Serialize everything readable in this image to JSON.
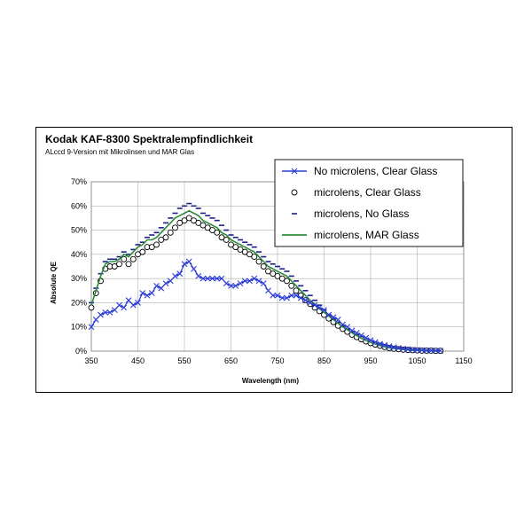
{
  "chart_data": {
    "type": "line",
    "title": "Kodak KAF-8300 Spektralempfindlichkeit",
    "subtitle": "ALccd 9-Version mit Mikrolinsen und MAR Glas",
    "xlabel": "Wavelength (nm)",
    "ylabel": "Absolute QE",
    "xlim": [
      350,
      1150
    ],
    "ylim": [
      0,
      70
    ],
    "xticks": [
      350,
      450,
      550,
      650,
      750,
      850,
      950,
      1050,
      1150
    ],
    "yticks": [
      0,
      10,
      20,
      30,
      40,
      50,
      60,
      70
    ],
    "ytick_labels": [
      "0%",
      "10%",
      "20%",
      "30%",
      "40%",
      "50%",
      "60%",
      "70%"
    ],
    "grid": true,
    "legend": "top-right",
    "series": [
      {
        "name": "No microlens, Clear Glass",
        "color": "#2a3bd6",
        "style": "line-x",
        "x": [
          350,
          360,
          370,
          380,
          390,
          400,
          410,
          420,
          430,
          440,
          450,
          460,
          470,
          480,
          490,
          500,
          510,
          520,
          530,
          540,
          550,
          560,
          570,
          580,
          590,
          600,
          610,
          620,
          630,
          640,
          650,
          660,
          670,
          680,
          690,
          700,
          710,
          720,
          730,
          740,
          750,
          760,
          770,
          780,
          790,
          800,
          810,
          820,
          830,
          840,
          850,
          860,
          870,
          880,
          890,
          900,
          910,
          920,
          930,
          940,
          950,
          960,
          970,
          980,
          990,
          1000,
          1010,
          1020,
          1030,
          1040,
          1050,
          1060,
          1070,
          1080,
          1090,
          1100
        ],
        "y": [
          10,
          13,
          15,
          16,
          16,
          17,
          19,
          18,
          21,
          19,
          20,
          24,
          23,
          24,
          27,
          26,
          28,
          29,
          31,
          32,
          36,
          37,
          34,
          31,
          30,
          30,
          30,
          30,
          30,
          28,
          27,
          27,
          28,
          29,
          29,
          30,
          29,
          28,
          25,
          23,
          23,
          22,
          22,
          23,
          23,
          22,
          21,
          20,
          19,
          18,
          17,
          15,
          14,
          13,
          11,
          10,
          8.5,
          7.5,
          6.5,
          5.5,
          4.5,
          3.7,
          3,
          2.5,
          2,
          1.6,
          1.3,
          1,
          0.8,
          0.6,
          0.5,
          0.4,
          0.3,
          0.3,
          0.2,
          0.2
        ]
      },
      {
        "name": "microlens, Clear Glass",
        "color": "#000000",
        "style": "circle",
        "x": [
          350,
          360,
          370,
          380,
          390,
          400,
          410,
          420,
          430,
          440,
          450,
          460,
          470,
          480,
          490,
          500,
          510,
          520,
          530,
          540,
          550,
          560,
          570,
          580,
          590,
          600,
          610,
          620,
          630,
          640,
          650,
          660,
          670,
          680,
          690,
          700,
          710,
          720,
          730,
          740,
          750,
          760,
          770,
          780,
          790,
          800,
          810,
          820,
          830,
          840,
          850,
          860,
          870,
          880,
          890,
          900,
          910,
          920,
          930,
          940,
          950,
          960,
          970,
          980,
          990,
          1000,
          1010,
          1020,
          1030,
          1040,
          1050,
          1060,
          1070,
          1080,
          1090,
          1100
        ],
        "y": [
          18,
          24,
          29,
          34,
          35,
          35,
          36,
          38,
          36,
          38,
          40,
          41,
          43,
          43,
          44,
          46,
          47,
          49,
          51,
          53,
          54,
          55,
          54,
          53,
          52,
          51,
          50,
          49,
          47,
          46,
          44,
          43,
          42,
          41,
          40,
          39,
          37,
          35,
          33,
          32,
          31,
          30,
          29,
          27,
          25,
          23,
          21,
          19.5,
          18,
          16.5,
          15,
          13.5,
          12,
          10.5,
          9.2,
          8,
          6.8,
          5.8,
          4.9,
          4,
          3.3,
          2.7,
          2.2,
          1.7,
          1.3,
          1,
          0.8,
          0.6,
          0.5,
          0.4,
          0.3,
          0.2,
          0.2,
          0.2,
          0.1,
          0.1
        ]
      },
      {
        "name": "microlens, No Glass",
        "color": "#1a1f8a",
        "style": "dash",
        "x": [
          350,
          360,
          370,
          380,
          390,
          400,
          410,
          420,
          430,
          440,
          450,
          460,
          470,
          480,
          490,
          500,
          510,
          520,
          530,
          540,
          550,
          560,
          570,
          580,
          590,
          600,
          610,
          620,
          630,
          640,
          650,
          660,
          670,
          680,
          690,
          700,
          710,
          720,
          730,
          740,
          750,
          760,
          770,
          780,
          790,
          800,
          810,
          820,
          830,
          840,
          850,
          860,
          870,
          880,
          890,
          900,
          910,
          920,
          930,
          940,
          950,
          960,
          970,
          980,
          990,
          1000,
          1010,
          1020,
          1030,
          1040,
          1050,
          1060,
          1070,
          1080,
          1090,
          1100
        ],
        "y": [
          20,
          26,
          32,
          37,
          38,
          38,
          39,
          41,
          40,
          42,
          44,
          45,
          47,
          48,
          49,
          51,
          53,
          55,
          57,
          59,
          60,
          61,
          60,
          59,
          57,
          56,
          55,
          54,
          52,
          50,
          48,
          47,
          46,
          45,
          44,
          43,
          41,
          39,
          37,
          36,
          35,
          34,
          33,
          31,
          29,
          27,
          25,
          23,
          21,
          19,
          17,
          15,
          13.5,
          12,
          10.5,
          9,
          7.8,
          6.6,
          5.5,
          4.6,
          3.8,
          3.1,
          2.5,
          2,
          1.6,
          1.2,
          1,
          0.8,
          0.6,
          0.5,
          0.4,
          0.3,
          0.3,
          0.2,
          0.2,
          0.1
        ]
      },
      {
        "name": "microlens, MAR Glass",
        "color": "#2e8b3a",
        "style": "line",
        "x": [
          350,
          360,
          370,
          380,
          390,
          400,
          410,
          420,
          430,
          440,
          450,
          460,
          470,
          480,
          490,
          500,
          510,
          520,
          530,
          540,
          550,
          560,
          570,
          580,
          590,
          600,
          610,
          620,
          630,
          640,
          650,
          660,
          670,
          680,
          690,
          700,
          710,
          720,
          730,
          740,
          750,
          760,
          770,
          780,
          790,
          800,
          810,
          820,
          830,
          840,
          850,
          860,
          870,
          880,
          890,
          900,
          910,
          920,
          930,
          940,
          950,
          960,
          970,
          980,
          990,
          1000,
          1010,
          1020,
          1030,
          1040,
          1050,
          1060,
          1070,
          1080,
          1090,
          1100
        ],
        "y": [
          19,
          25,
          31,
          36,
          37,
          37,
          38,
          40,
          39,
          41,
          43,
          44,
          46,
          46,
          47,
          49,
          51,
          53,
          55,
          56,
          57,
          58,
          57,
          56,
          54,
          53,
          52,
          51,
          49,
          48,
          46,
          45,
          44,
          43,
          42,
          41,
          39,
          37,
          35,
          34,
          33,
          32,
          31,
          29,
          27,
          25,
          23,
          21,
          19.5,
          17.5,
          16,
          14.5,
          13,
          11.5,
          10,
          8.8,
          7.5,
          6.4,
          5.3,
          4.4,
          3.6,
          2.9,
          2.3,
          1.8,
          1.4,
          1.1,
          0.9,
          0.7,
          0.5,
          0.4,
          0.3,
          0.3,
          0.2,
          0.2,
          0.1,
          0.1
        ]
      }
    ]
  }
}
